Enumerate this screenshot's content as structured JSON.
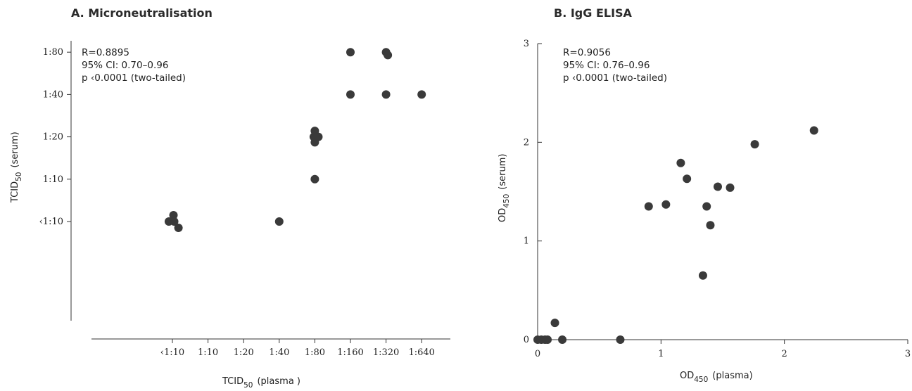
{
  "chart_data": [
    {
      "type": "scatter",
      "title": "A. Microneutralisation",
      "xlabel": "TCID",
      "xlabel_sub": "50",
      "xlabel_suffix": "(plasma )",
      "ylabel": "TCID",
      "ylabel_sub": "50",
      "ylabel_suffix": "(serum)",
      "x_categories": [
        "‹1:10",
        "1:10",
        "1:20",
        "1:40",
        "1:80",
        "1:160",
        "1:320",
        "1:640"
      ],
      "y_categories": [
        "‹1:10",
        "1:10",
        "1:20",
        "1:40",
        "1:80"
      ],
      "annotation": [
        "R=0.8895",
        "95% CI: 0.70–0.96",
        "p ‹0.0001 (two-tailed)"
      ],
      "grid": false,
      "points": [
        {
          "x": -0.1,
          "y": 0.0
        },
        {
          "x": 0.03,
          "y": 0.15
        },
        {
          "x": 0.05,
          "y": 0.0
        },
        {
          "x": 0.17,
          "y": -0.15
        },
        {
          "x": 3.0,
          "y": 0.0
        },
        {
          "x": 3.97,
          "y": 2.0
        },
        {
          "x": 4.0,
          "y": 2.14
        },
        {
          "x": 4.0,
          "y": 1.87
        },
        {
          "x": 4.0,
          "y": 1.0
        },
        {
          "x": 4.1,
          "y": 2.0
        },
        {
          "x": 5.0,
          "y": 3.0
        },
        {
          "x": 5.0,
          "y": 4.0
        },
        {
          "x": 6.0,
          "y": 3.0
        },
        {
          "x": 6.0,
          "y": 4.0
        },
        {
          "x": 6.05,
          "y": 3.93
        },
        {
          "x": 7.0,
          "y": 3.0
        }
      ]
    },
    {
      "type": "scatter",
      "title": "B. IgG ELISA",
      "xlabel": "OD",
      "xlabel_sub": "450",
      "xlabel_suffix": "(plasma)",
      "ylabel": "OD",
      "ylabel_sub": "450",
      "ylabel_suffix": "(serum)",
      "xlim": [
        0,
        3
      ],
      "ylim": [
        0,
        3
      ],
      "x_ticks": [
        "0",
        "1",
        "2",
        "3"
      ],
      "y_ticks": [
        "0",
        "1",
        "2",
        "3"
      ],
      "annotation": [
        "R=0.9056",
        "95% CI: 0.76–0.96",
        "p ‹0.0001 (two-tailed)"
      ],
      "grid": false,
      "points": [
        {
          "x": 0.0,
          "y": 0.0
        },
        {
          "x": 0.03,
          "y": 0.0
        },
        {
          "x": 0.06,
          "y": 0.0
        },
        {
          "x": 0.08,
          "y": 0.0
        },
        {
          "x": 0.14,
          "y": 0.17
        },
        {
          "x": 0.2,
          "y": 0.0
        },
        {
          "x": 0.67,
          "y": 0.0
        },
        {
          "x": 0.9,
          "y": 1.35
        },
        {
          "x": 1.04,
          "y": 1.37
        },
        {
          "x": 1.16,
          "y": 1.79
        },
        {
          "x": 1.21,
          "y": 1.63
        },
        {
          "x": 1.34,
          "y": 0.65
        },
        {
          "x": 1.37,
          "y": 1.35
        },
        {
          "x": 1.4,
          "y": 1.16
        },
        {
          "x": 1.46,
          "y": 1.55
        },
        {
          "x": 1.56,
          "y": 1.54
        },
        {
          "x": 1.76,
          "y": 1.98
        },
        {
          "x": 2.24,
          "y": 2.12
        }
      ]
    }
  ]
}
